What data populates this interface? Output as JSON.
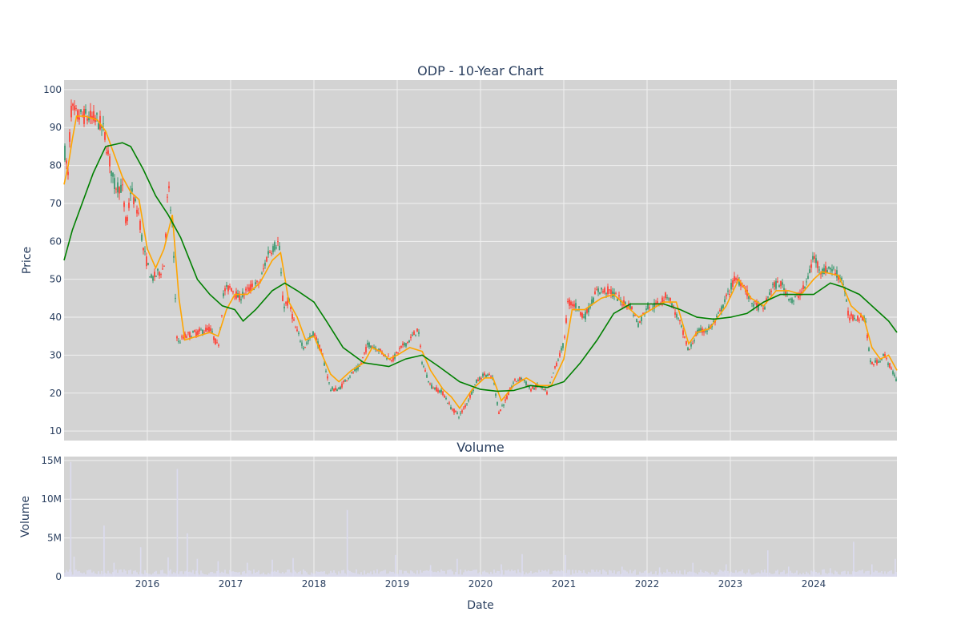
{
  "colors": {
    "plot_bg": "#d3d3d3",
    "grid": "#f0f0f0",
    "text": "#2a3f5f",
    "up": "#3d9970",
    "down": "#ff4136",
    "ma_fast": "#ffa500",
    "ma_slow": "#008000",
    "volume": "#dcdcf0"
  },
  "chart_data": [
    {
      "type": "candlestick",
      "title": "ODP - 10-Year Chart",
      "ylabel": "Price",
      "ylim": [
        7.5,
        102.5
      ],
      "yticks": [
        10,
        20,
        30,
        40,
        50,
        60,
        70,
        80,
        90,
        100
      ],
      "xlim": [
        2015.0,
        2025.0
      ],
      "grid": true,
      "price_path": [
        [
          2015.0,
          85
        ],
        [
          2015.05,
          77
        ],
        [
          2015.08,
          95
        ],
        [
          2015.15,
          93
        ],
        [
          2015.25,
          93
        ],
        [
          2015.4,
          92
        ],
        [
          2015.48,
          89
        ],
        [
          2015.52,
          84
        ],
        [
          2015.6,
          75
        ],
        [
          2015.7,
          74
        ],
        [
          2015.75,
          63
        ],
        [
          2015.8,
          74
        ],
        [
          2015.85,
          70
        ],
        [
          2015.9,
          67
        ],
        [
          2015.95,
          58
        ],
        [
          2016.05,
          50
        ],
        [
          2016.2,
          53
        ],
        [
          2016.25,
          75
        ],
        [
          2016.3,
          64
        ],
        [
          2016.36,
          33
        ],
        [
          2016.45,
          35
        ],
        [
          2016.6,
          36
        ],
        [
          2016.75,
          37
        ],
        [
          2016.85,
          32
        ],
        [
          2016.92,
          47
        ],
        [
          2017.0,
          48
        ],
        [
          2017.1,
          45
        ],
        [
          2017.25,
          48
        ],
        [
          2017.35,
          49
        ],
        [
          2017.45,
          57
        ],
        [
          2017.58,
          60
        ],
        [
          2017.63,
          43
        ],
        [
          2017.7,
          44
        ],
        [
          2017.78,
          37
        ],
        [
          2017.88,
          32
        ],
        [
          2018.0,
          36
        ],
        [
          2018.1,
          30
        ],
        [
          2018.2,
          21
        ],
        [
          2018.3,
          21
        ],
        [
          2018.4,
          24
        ],
        [
          2018.55,
          27
        ],
        [
          2018.65,
          33
        ],
        [
          2018.75,
          32
        ],
        [
          2018.85,
          30
        ],
        [
          2018.95,
          29
        ],
        [
          2019.05,
          32
        ],
        [
          2019.15,
          34
        ],
        [
          2019.25,
          37
        ],
        [
          2019.3,
          28
        ],
        [
          2019.4,
          22
        ],
        [
          2019.55,
          20
        ],
        [
          2019.65,
          16
        ],
        [
          2019.75,
          14
        ],
        [
          2019.85,
          18
        ],
        [
          2019.95,
          23
        ],
        [
          2020.05,
          25
        ],
        [
          2020.15,
          24
        ],
        [
          2020.22,
          15
        ],
        [
          2020.3,
          18
        ],
        [
          2020.4,
          23
        ],
        [
          2020.5,
          24
        ],
        [
          2020.6,
          21
        ],
        [
          2020.7,
          22
        ],
        [
          2020.8,
          20
        ],
        [
          2020.9,
          27
        ],
        [
          2021.0,
          33
        ],
        [
          2021.05,
          44
        ],
        [
          2021.15,
          43
        ],
        [
          2021.25,
          40
        ],
        [
          2021.4,
          47
        ],
        [
          2021.55,
          47
        ],
        [
          2021.7,
          44
        ],
        [
          2021.8,
          43
        ],
        [
          2021.9,
          38
        ],
        [
          2022.0,
          43
        ],
        [
          2022.1,
          43
        ],
        [
          2022.25,
          46
        ],
        [
          2022.4,
          38
        ],
        [
          2022.5,
          31
        ],
        [
          2022.6,
          36
        ],
        [
          2022.75,
          37
        ],
        [
          2022.85,
          40
        ],
        [
          2022.95,
          45
        ],
        [
          2023.05,
          50
        ],
        [
          2023.15,
          49
        ],
        [
          2023.25,
          44
        ],
        [
          2023.4,
          42
        ],
        [
          2023.5,
          48
        ],
        [
          2023.6,
          49
        ],
        [
          2023.75,
          44
        ],
        [
          2023.9,
          48
        ],
        [
          2024.0,
          56
        ],
        [
          2024.1,
          52
        ],
        [
          2024.2,
          53
        ],
        [
          2024.35,
          50
        ],
        [
          2024.42,
          40
        ],
        [
          2024.55,
          40
        ],
        [
          2024.62,
          40
        ],
        [
          2024.68,
          28
        ],
        [
          2024.75,
          28
        ],
        [
          2024.85,
          30
        ],
        [
          2024.92,
          27
        ],
        [
          2025.0,
          23
        ]
      ],
      "series": [
        {
          "name": "",
          "color_key": "ma_fast",
          "points": [
            [
              2015.0,
              75
            ],
            [
              2015.05,
              80
            ],
            [
              2015.1,
              87
            ],
            [
              2015.15,
              93
            ],
            [
              2015.25,
              93
            ],
            [
              2015.4,
              92
            ],
            [
              2015.5,
              89
            ],
            [
              2015.6,
              83
            ],
            [
              2015.7,
              77
            ],
            [
              2015.8,
              73
            ],
            [
              2015.9,
              71
            ],
            [
              2016.0,
              58
            ],
            [
              2016.1,
              53
            ],
            [
              2016.2,
              58
            ],
            [
              2016.3,
              67
            ],
            [
              2016.38,
              45
            ],
            [
              2016.45,
              34
            ],
            [
              2016.6,
              35
            ],
            [
              2016.75,
              36
            ],
            [
              2016.85,
              35
            ],
            [
              2016.95,
              42
            ],
            [
              2017.05,
              46
            ],
            [
              2017.2,
              46
            ],
            [
              2017.35,
              49
            ],
            [
              2017.5,
              55
            ],
            [
              2017.6,
              57
            ],
            [
              2017.7,
              44
            ],
            [
              2017.8,
              40
            ],
            [
              2017.9,
              34
            ],
            [
              2018.0,
              35
            ],
            [
              2018.1,
              30
            ],
            [
              2018.2,
              25
            ],
            [
              2018.3,
              23
            ],
            [
              2018.45,
              26
            ],
            [
              2018.6,
              28
            ],
            [
              2018.7,
              32
            ],
            [
              2018.8,
              31
            ],
            [
              2018.9,
              29
            ],
            [
              2019.0,
              30
            ],
            [
              2019.15,
              32
            ],
            [
              2019.3,
              31
            ],
            [
              2019.4,
              26
            ],
            [
              2019.55,
              21
            ],
            [
              2019.65,
              19
            ],
            [
              2019.75,
              16
            ],
            [
              2019.9,
              21
            ],
            [
              2020.05,
              24
            ],
            [
              2020.15,
              24
            ],
            [
              2020.25,
              18
            ],
            [
              2020.4,
              22
            ],
            [
              2020.55,
              24
            ],
            [
              2020.7,
              22
            ],
            [
              2020.85,
              22
            ],
            [
              2021.0,
              29
            ],
            [
              2021.1,
              42
            ],
            [
              2021.25,
              42
            ],
            [
              2021.45,
              45
            ],
            [
              2021.6,
              46
            ],
            [
              2021.75,
              43
            ],
            [
              2021.9,
              40
            ],
            [
              2022.05,
              42
            ],
            [
              2022.2,
              44
            ],
            [
              2022.35,
              44
            ],
            [
              2022.5,
              33
            ],
            [
              2022.6,
              36
            ],
            [
              2022.75,
              37
            ],
            [
              2022.95,
              43
            ],
            [
              2023.1,
              50
            ],
            [
              2023.25,
              45
            ],
            [
              2023.4,
              43
            ],
            [
              2023.55,
              47
            ],
            [
              2023.7,
              47
            ],
            [
              2023.85,
              46
            ],
            [
              2024.0,
              50
            ],
            [
              2024.1,
              52
            ],
            [
              2024.3,
              51
            ],
            [
              2024.45,
              43
            ],
            [
              2024.6,
              40
            ],
            [
              2024.7,
              32
            ],
            [
              2024.8,
              29
            ],
            [
              2024.9,
              30
            ],
            [
              2025.0,
              26
            ]
          ]
        },
        {
          "name": "",
          "color_key": "ma_slow",
          "points": [
            [
              2015.0,
              55
            ],
            [
              2015.1,
              63
            ],
            [
              2015.2,
              69
            ],
            [
              2015.35,
              78
            ],
            [
              2015.5,
              85
            ],
            [
              2015.7,
              86
            ],
            [
              2015.8,
              85
            ],
            [
              2015.95,
              79
            ],
            [
              2016.1,
              72
            ],
            [
              2016.25,
              67
            ],
            [
              2016.4,
              61
            ],
            [
              2016.6,
              50
            ],
            [
              2016.75,
              46
            ],
            [
              2016.9,
              43
            ],
            [
              2017.05,
              42
            ],
            [
              2017.15,
              39
            ],
            [
              2017.3,
              42
            ],
            [
              2017.5,
              47
            ],
            [
              2017.65,
              49
            ],
            [
              2017.8,
              47
            ],
            [
              2018.0,
              44
            ],
            [
              2018.15,
              39
            ],
            [
              2018.35,
              32
            ],
            [
              2018.6,
              28
            ],
            [
              2018.9,
              27
            ],
            [
              2019.1,
              29
            ],
            [
              2019.3,
              30
            ],
            [
              2019.5,
              27
            ],
            [
              2019.75,
              23
            ],
            [
              2020.0,
              21
            ],
            [
              2020.2,
              20.5
            ],
            [
              2020.4,
              20.7
            ],
            [
              2020.6,
              22
            ],
            [
              2020.8,
              21.5
            ],
            [
              2021.0,
              23
            ],
            [
              2021.2,
              28
            ],
            [
              2021.4,
              34
            ],
            [
              2021.6,
              41
            ],
            [
              2021.8,
              43.5
            ],
            [
              2022.0,
              43.5
            ],
            [
              2022.2,
              43.5
            ],
            [
              2022.4,
              42
            ],
            [
              2022.6,
              40
            ],
            [
              2022.8,
              39.5
            ],
            [
              2023.0,
              40
            ],
            [
              2023.2,
              41
            ],
            [
              2023.4,
              44
            ],
            [
              2023.6,
              46
            ],
            [
              2023.8,
              46
            ],
            [
              2024.0,
              46
            ],
            [
              2024.2,
              49
            ],
            [
              2024.35,
              48
            ],
            [
              2024.55,
              46
            ],
            [
              2024.75,
              42
            ],
            [
              2024.9,
              39
            ],
            [
              2025.0,
              36
            ]
          ]
        }
      ]
    },
    {
      "type": "bar",
      "title": "Volume",
      "ylabel": "Volume",
      "ylim": [
        0,
        15500000
      ],
      "yticks": [
        0,
        5000000,
        10000000,
        15000000
      ],
      "ytick_labels": [
        "0",
        "5M",
        "10M",
        "15M"
      ],
      "xlim": [
        2015.0,
        2025.0
      ],
      "xticks": [
        2016,
        2017,
        2018,
        2019,
        2020,
        2021,
        2022,
        2023,
        2024
      ],
      "xtick_labels": [
        "2016",
        "2017",
        "2018",
        "2019",
        "2020",
        "2021",
        "2022",
        "2023",
        "2024"
      ],
      "xlabel": "Date",
      "grid": true,
      "baseline": 600000,
      "spikes": [
        [
          2015.08,
          14800000
        ],
        [
          2015.12,
          2600000
        ],
        [
          2015.48,
          6600000
        ],
        [
          2015.6,
          1800000
        ],
        [
          2015.92,
          3800000
        ],
        [
          2016.25,
          2500000
        ],
        [
          2016.36,
          13900000
        ],
        [
          2016.48,
          5600000
        ],
        [
          2016.6,
          2300000
        ],
        [
          2016.85,
          2000000
        ],
        [
          2017.2,
          1800000
        ],
        [
          2017.5,
          2200000
        ],
        [
          2017.75,
          2400000
        ],
        [
          2018.4,
          8600000
        ],
        [
          2018.98,
          2800000
        ],
        [
          2019.4,
          1500000
        ],
        [
          2019.72,
          2300000
        ],
        [
          2020.25,
          1600000
        ],
        [
          2020.5,
          2900000
        ],
        [
          2021.02,
          2800000
        ],
        [
          2021.7,
          1300000
        ],
        [
          2022.15,
          1200000
        ],
        [
          2022.55,
          1800000
        ],
        [
          2022.95,
          1600000
        ],
        [
          2023.45,
          3400000
        ],
        [
          2023.7,
          1300000
        ],
        [
          2024.2,
          1100000
        ],
        [
          2024.48,
          4500000
        ],
        [
          2024.7,
          1600000
        ],
        [
          2024.98,
          2300000
        ]
      ]
    }
  ]
}
